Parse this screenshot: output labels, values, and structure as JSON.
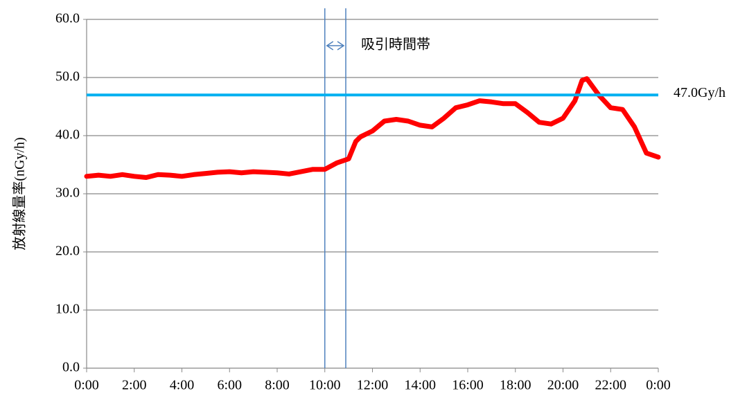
{
  "chart_data": {
    "type": "line",
    "y_label": "放射線量率(nGy/h)",
    "x": [
      0,
      0.5,
      1,
      1.5,
      2,
      2.5,
      3,
      3.5,
      4,
      4.5,
      5,
      5.5,
      6,
      6.5,
      7,
      7.5,
      8,
      8.5,
      9,
      9.5,
      10,
      10.5,
      11,
      11.3,
      11.5,
      12,
      12.5,
      13,
      13.5,
      14,
      14.5,
      15,
      15.5,
      16,
      16.5,
      17,
      17.5,
      18,
      18.5,
      19,
      19.5,
      20,
      20.5,
      20.8,
      21,
      21.5,
      22,
      22.5,
      23,
      23.5,
      24
    ],
    "series": [
      {
        "color": "#ff0000",
        "values": [
          33,
          33.2,
          33,
          33.3,
          33,
          32.8,
          33.3,
          33.2,
          33,
          33.3,
          33.5,
          33.7,
          33.8,
          33.6,
          33.8,
          33.7,
          33.6,
          33.4,
          33.8,
          34.2,
          34.2,
          35.3,
          36,
          39,
          39.8,
          40.8,
          42.5,
          42.8,
          42.5,
          41.8,
          41.5,
          43,
          44.8,
          45.3,
          46,
          45.8,
          45.5,
          45.5,
          44,
          42.3,
          42,
          43,
          46,
          49.5,
          49.8,
          47,
          44.8,
          44.5,
          41.5,
          37,
          36.3
        ]
      }
    ],
    "xlim": [
      0,
      24
    ],
    "xticks": [
      {
        "value": 0,
        "label": "0:00"
      },
      {
        "value": 2,
        "label": "2:00"
      },
      {
        "value": 4,
        "label": "4:00"
      },
      {
        "value": 6,
        "label": "6:00"
      },
      {
        "value": 8,
        "label": "8:00"
      },
      {
        "value": 10,
        "label": "10:00"
      },
      {
        "value": 12,
        "label": "12:00"
      },
      {
        "value": 14,
        "label": "14:00"
      },
      {
        "value": 16,
        "label": "16:00"
      },
      {
        "value": 18,
        "label": "18:00"
      },
      {
        "value": 20,
        "label": "20:00"
      },
      {
        "value": 22,
        "label": "22:00"
      },
      {
        "value": 24,
        "label": "0:00"
      }
    ],
    "ylim": [
      0,
      60
    ],
    "yticks": [
      {
        "value": 0,
        "label": "0.0"
      },
      {
        "value": 10,
        "label": "10.0"
      },
      {
        "value": 20,
        "label": "20.0"
      },
      {
        "value": 30,
        "label": "30.0"
      },
      {
        "value": 40,
        "label": "40.0"
      },
      {
        "value": 50,
        "label": "50.0"
      },
      {
        "value": 60,
        "label": "60.0"
      }
    ],
    "grid": true,
    "threshold": {
      "value": 47,
      "label": "47.0Gy/h",
      "color": "#00b0f0"
    },
    "window": {
      "start": 10,
      "end": 10.88,
      "label": "吸引時間帯",
      "color": "#4f81bd"
    }
  }
}
